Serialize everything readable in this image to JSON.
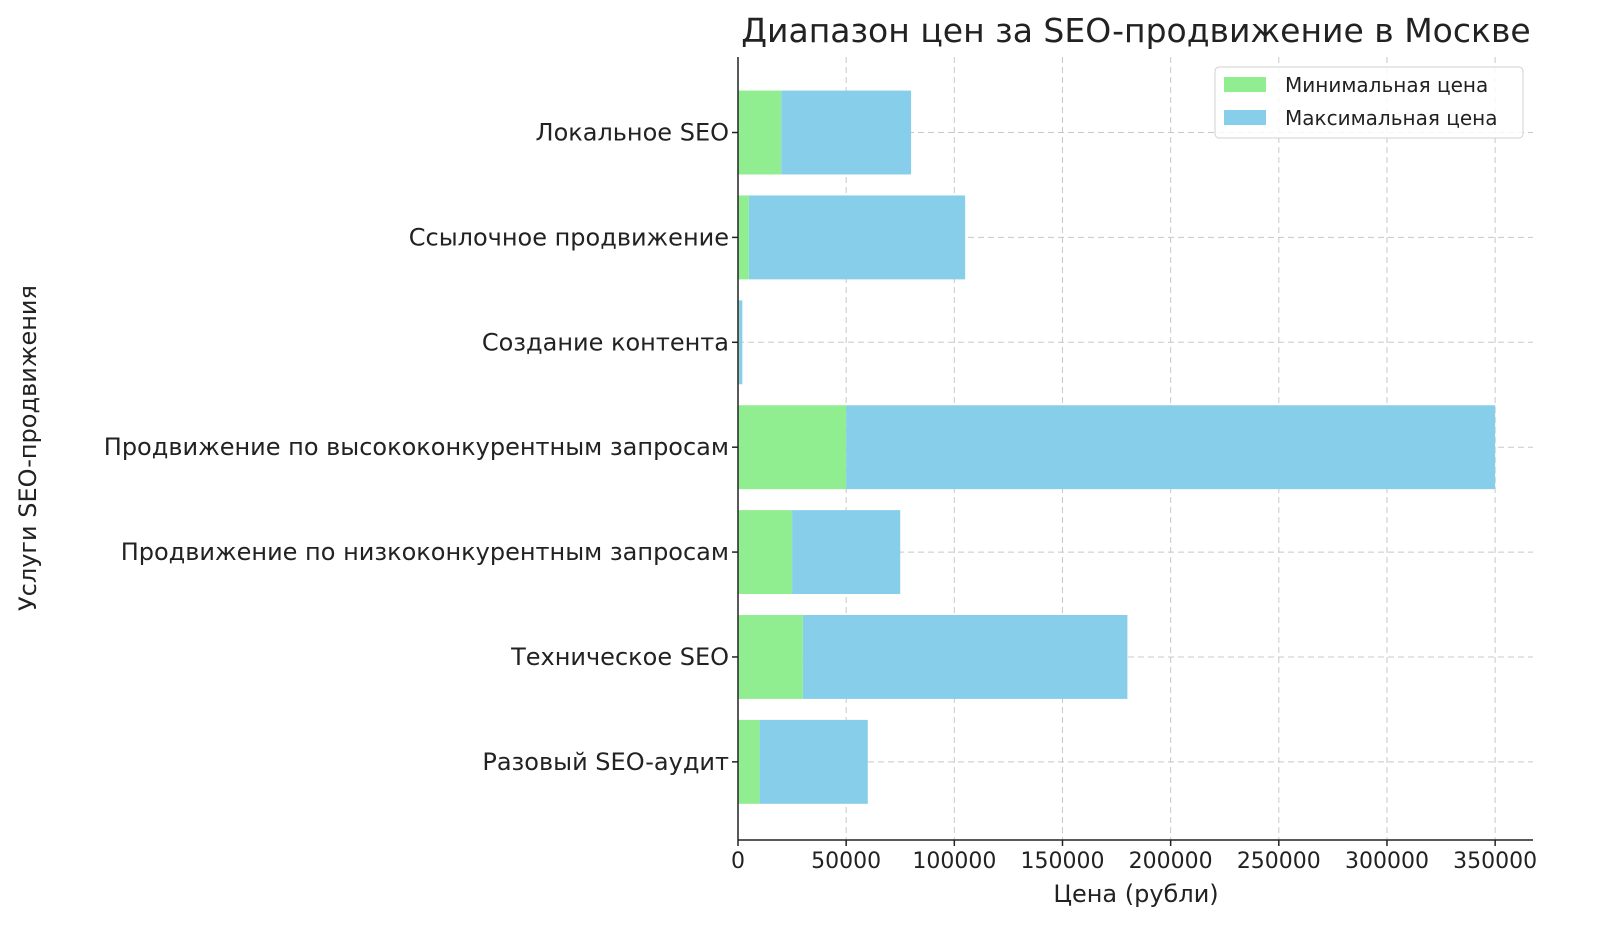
{
  "chart_data": {
    "type": "bar",
    "orientation": "horizontal",
    "stacked": true,
    "title": "Диапазон цен за SEO-продвижение в Москве",
    "xlabel": "Цена (рубли)",
    "ylabel": "Услуги SEO-продвижения",
    "xlim": [
      0,
      367500
    ],
    "xticks": [
      0,
      50000,
      100000,
      150000,
      200000,
      250000,
      300000,
      350000
    ],
    "xtick_labels": [
      "0",
      "50000",
      "100000",
      "150000",
      "200000",
      "250000",
      "300000",
      "350000"
    ],
    "grid": true,
    "legend_position": "top-right",
    "categories": [
      "Разовый SEO-аудит",
      "Техническое SEO",
      "Продвижение по низкоконкурентным запросам",
      "Продвижение по высококонкурентным запросам",
      "Создание контента",
      "Ссылочное продвижение",
      "Локальное SEO"
    ],
    "series": [
      {
        "name": "Минимальная цена",
        "color": "#90ee90",
        "values": [
          10000,
          30000,
          25000,
          50000,
          500,
          5000,
          20000
        ]
      },
      {
        "name": "Максимальная цена",
        "color": "#87ceeb",
        "values": [
          50000,
          150000,
          50000,
          300000,
          1500,
          100000,
          60000
        ]
      }
    ]
  }
}
